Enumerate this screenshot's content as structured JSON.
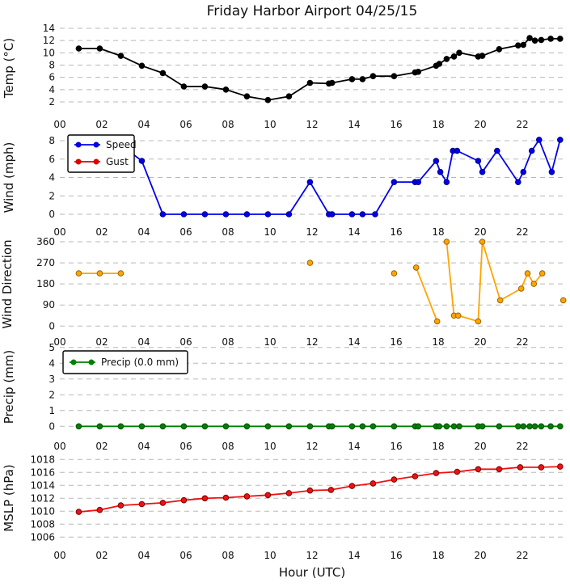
{
  "chart_data": {
    "type": "line",
    "title": "Friday Harbor Airport 04/25/15",
    "xlabel": "Hour (UTC)",
    "x_axis": {
      "range": [
        0,
        24
      ],
      "tick_hours": [
        0,
        2,
        4,
        6,
        8,
        10,
        12,
        14,
        16,
        18,
        20,
        22
      ],
      "tick_labels": [
        "00",
        "02",
        "04",
        "06",
        "08",
        "10",
        "12",
        "14",
        "16",
        "18",
        "20",
        "22"
      ]
    },
    "grid": "horizontal-dashed",
    "grid_color": "#b8b8b8",
    "panels": [
      {
        "id": "temp",
        "ylabel": "Temp (°C)",
        "ytick_labels": [
          "14",
          "12",
          "10",
          "8",
          "6",
          "4",
          "2"
        ],
        "ytick_values": [
          14,
          12,
          10,
          8,
          6,
          4,
          2
        ],
        "ylim": [
          0,
          15
        ],
        "series": [
          {
            "name": "Temperature",
            "color": "#000000",
            "marker_edge": "#000000",
            "segments": [
              [
                [
                  0.9,
                  10.7
                ],
                [
                  1.9,
                  10.7
                ],
                [
                  2.9,
                  9.5
                ],
                [
                  3.9,
                  7.9
                ],
                [
                  4.9,
                  6.7
                ],
                [
                  5.9,
                  4.5
                ],
                [
                  6.9,
                  4.5
                ],
                [
                  7.9,
                  4.0
                ],
                [
                  8.9,
                  2.9
                ],
                [
                  9.9,
                  2.3
                ],
                [
                  10.9,
                  2.9
                ],
                [
                  11.9,
                  5.1
                ],
                [
                  12.8,
                  5.0
                ],
                [
                  12.95,
                  5.1
                ],
                [
                  13.9,
                  5.7
                ],
                [
                  14.4,
                  5.7
                ],
                [
                  14.9,
                  6.2
                ],
                [
                  15.9,
                  6.2
                ],
                [
                  16.9,
                  6.8
                ],
                [
                  17.05,
                  6.9
                ],
                [
                  17.9,
                  7.9
                ],
                [
                  18.05,
                  8.2
                ],
                [
                  18.4,
                  9.0
                ],
                [
                  18.75,
                  9.4
                ],
                [
                  19.0,
                  10.0
                ],
                [
                  19.9,
                  9.4
                ],
                [
                  20.1,
                  9.5
                ],
                [
                  20.9,
                  10.6
                ],
                [
                  21.8,
                  11.2
                ],
                [
                  22.05,
                  11.3
                ],
                [
                  22.35,
                  12.4
                ],
                [
                  22.6,
                  12.0
                ],
                [
                  22.9,
                  12.1
                ],
                [
                  23.35,
                  12.3
                ],
                [
                  23.8,
                  12.3
                ]
              ]
            ]
          }
        ]
      },
      {
        "id": "wind",
        "ylabel": "Wind (mph)",
        "ytick_labels": [
          "8",
          "6",
          "4",
          "2",
          "0"
        ],
        "ytick_values": [
          8,
          6,
          4,
          2,
          0
        ],
        "ylim": [
          -0.5,
          8.5
        ],
        "legend": {
          "position": "upper-left",
          "entries": [
            {
              "label": "Speed",
              "color": "#0000ee"
            },
            {
              "label": "Gust",
              "color": "#dd0000"
            }
          ]
        },
        "series": [
          {
            "name": "Speed",
            "color": "#0000ee",
            "marker_edge": "#000080",
            "lead_in": [
              3.5,
              6.5
            ],
            "segments": [
              [
                [
                  3.9,
                  5.8
                ],
                [
                  4.9,
                  0
                ],
                [
                  5.9,
                  0
                ],
                [
                  6.9,
                  0
                ],
                [
                  7.9,
                  0
                ],
                [
                  8.9,
                  0
                ],
                [
                  9.9,
                  0
                ],
                [
                  10.9,
                  0
                ],
                [
                  11.9,
                  3.5
                ],
                [
                  12.8,
                  0
                ],
                [
                  12.95,
                  0
                ],
                [
                  13.9,
                  0
                ],
                [
                  14.4,
                  0
                ],
                [
                  15.0,
                  0
                ],
                [
                  15.9,
                  3.5
                ],
                [
                  16.9,
                  3.5
                ],
                [
                  17.05,
                  3.5
                ],
                [
                  17.9,
                  5.8
                ],
                [
                  18.1,
                  4.6
                ],
                [
                  18.4,
                  3.5
                ],
                [
                  18.7,
                  6.9
                ],
                [
                  18.9,
                  6.9
                ],
                [
                  19.9,
                  5.8
                ],
                [
                  20.1,
                  4.6
                ],
                [
                  20.8,
                  6.9
                ],
                [
                  21.8,
                  3.5
                ],
                [
                  22.05,
                  4.6
                ],
                [
                  22.45,
                  6.9
                ],
                [
                  22.8,
                  8.1
                ],
                [
                  23.4,
                  4.6
                ],
                [
                  23.8,
                  8.1
                ]
              ]
            ]
          },
          {
            "name": "Gust",
            "color": "#dd0000",
            "marker_edge": "#7a0000",
            "segments": []
          }
        ]
      },
      {
        "id": "wind_dir",
        "ylabel": "Wind Direction",
        "ytick_labels": [
          "360",
          "270",
          "180",
          "90",
          "0"
        ],
        "ytick_values": [
          360,
          270,
          180,
          90,
          0
        ],
        "ylim": [
          -25,
          385
        ],
        "series": [
          {
            "name": "Wind Direction",
            "color": "#ffa500",
            "marker_edge": "#9c6500",
            "segments": [
              [
                [
                  0.9,
                  225
                ],
                [
                  1.9,
                  225
                ],
                [
                  2.9,
                  225
                ]
              ],
              [
                [
                  11.9,
                  270
                ]
              ],
              [
                [
                  15.9,
                  225
                ]
              ],
              [
                [
                  16.95,
                  250
                ],
                [
                  17.95,
                  20
                ]
              ],
              [
                [
                  18.4,
                  360
                ],
                [
                  18.75,
                  45
                ],
                [
                  18.95,
                  45
                ],
                [
                  19.9,
                  20
                ],
                [
                  20.1,
                  360
                ],
                [
                  20.95,
                  110
                ],
                [
                  21.95,
                  160
                ],
                [
                  22.25,
                  225
                ],
                [
                  22.55,
                  180
                ],
                [
                  22.95,
                  225
                ]
              ],
              [
                [
                  23.95,
                  110
                ]
              ]
            ]
          }
        ]
      },
      {
        "id": "precip",
        "ylabel": "Precip (mm)",
        "ytick_labels": [
          "5",
          "4",
          "3",
          "2",
          "1",
          "0"
        ],
        "ytick_values": [
          5,
          4,
          3,
          2,
          1,
          0
        ],
        "ylim": [
          -0.3,
          5.3
        ],
        "legend": {
          "position": "upper-left",
          "entries": [
            {
              "label": "Precip (0.0 mm)",
              "color": "#008000"
            }
          ]
        },
        "series": [
          {
            "name": "Precip",
            "color": "#008000",
            "marker_edge": "#004d00",
            "segments": [
              [
                [
                  0.9,
                  0
                ],
                [
                  1.9,
                  0
                ],
                [
                  2.9,
                  0
                ],
                [
                  3.9,
                  0
                ],
                [
                  4.9,
                  0
                ],
                [
                  5.9,
                  0
                ],
                [
                  6.9,
                  0
                ],
                [
                  7.9,
                  0
                ],
                [
                  8.9,
                  0
                ],
                [
                  9.9,
                  0
                ],
                [
                  10.9,
                  0
                ],
                [
                  11.9,
                  0
                ],
                [
                  12.8,
                  0
                ],
                [
                  12.95,
                  0
                ],
                [
                  13.9,
                  0
                ],
                [
                  14.4,
                  0
                ],
                [
                  14.9,
                  0
                ],
                [
                  15.9,
                  0
                ],
                [
                  16.9,
                  0
                ],
                [
                  17.05,
                  0
                ],
                [
                  17.9,
                  0
                ],
                [
                  18.05,
                  0
                ],
                [
                  18.4,
                  0
                ],
                [
                  18.75,
                  0
                ],
                [
                  19.0,
                  0
                ],
                [
                  19.9,
                  0
                ],
                [
                  20.1,
                  0
                ],
                [
                  20.9,
                  0
                ],
                [
                  21.8,
                  0
                ],
                [
                  22.05,
                  0
                ],
                [
                  22.35,
                  0
                ],
                [
                  22.6,
                  0
                ],
                [
                  22.9,
                  0
                ],
                [
                  23.35,
                  0
                ],
                [
                  23.8,
                  0
                ]
              ]
            ]
          }
        ]
      },
      {
        "id": "mslp",
        "ylabel": "MSLP (hPa)",
        "ytick_labels": [
          "1018",
          "1016",
          "1014",
          "1012",
          "1010",
          "1008",
          "1006"
        ],
        "ytick_values": [
          1018,
          1016,
          1014,
          1012,
          1010,
          1008,
          1006
        ],
        "ylim": [
          1005,
          1019
        ],
        "series": [
          {
            "name": "MSLP",
            "color": "#ee1111",
            "marker_edge": "#7a0000",
            "segments": [
              [
                [
                  0.9,
                  1009.9
                ],
                [
                  1.9,
                  1010.2
                ],
                [
                  2.9,
                  1010.9
                ],
                [
                  3.9,
                  1011.1
                ],
                [
                  4.9,
                  1011.3
                ],
                [
                  5.9,
                  1011.7
                ],
                [
                  6.9,
                  1012.0
                ],
                [
                  7.9,
                  1012.1
                ],
                [
                  8.9,
                  1012.3
                ],
                [
                  9.9,
                  1012.5
                ],
                [
                  10.9,
                  1012.8
                ],
                [
                  11.9,
                  1013.2
                ],
                [
                  12.9,
                  1013.3
                ],
                [
                  13.9,
                  1013.9
                ],
                [
                  14.9,
                  1014.3
                ],
                [
                  15.9,
                  1014.9
                ],
                [
                  16.9,
                  1015.4
                ],
                [
                  17.9,
                  1015.9
                ],
                [
                  18.9,
                  1016.1
                ],
                [
                  19.9,
                  1016.5
                ],
                [
                  20.9,
                  1016.5
                ],
                [
                  21.9,
                  1016.8
                ],
                [
                  22.9,
                  1016.8
                ],
                [
                  23.8,
                  1016.9
                ]
              ]
            ]
          }
        ]
      }
    ]
  }
}
